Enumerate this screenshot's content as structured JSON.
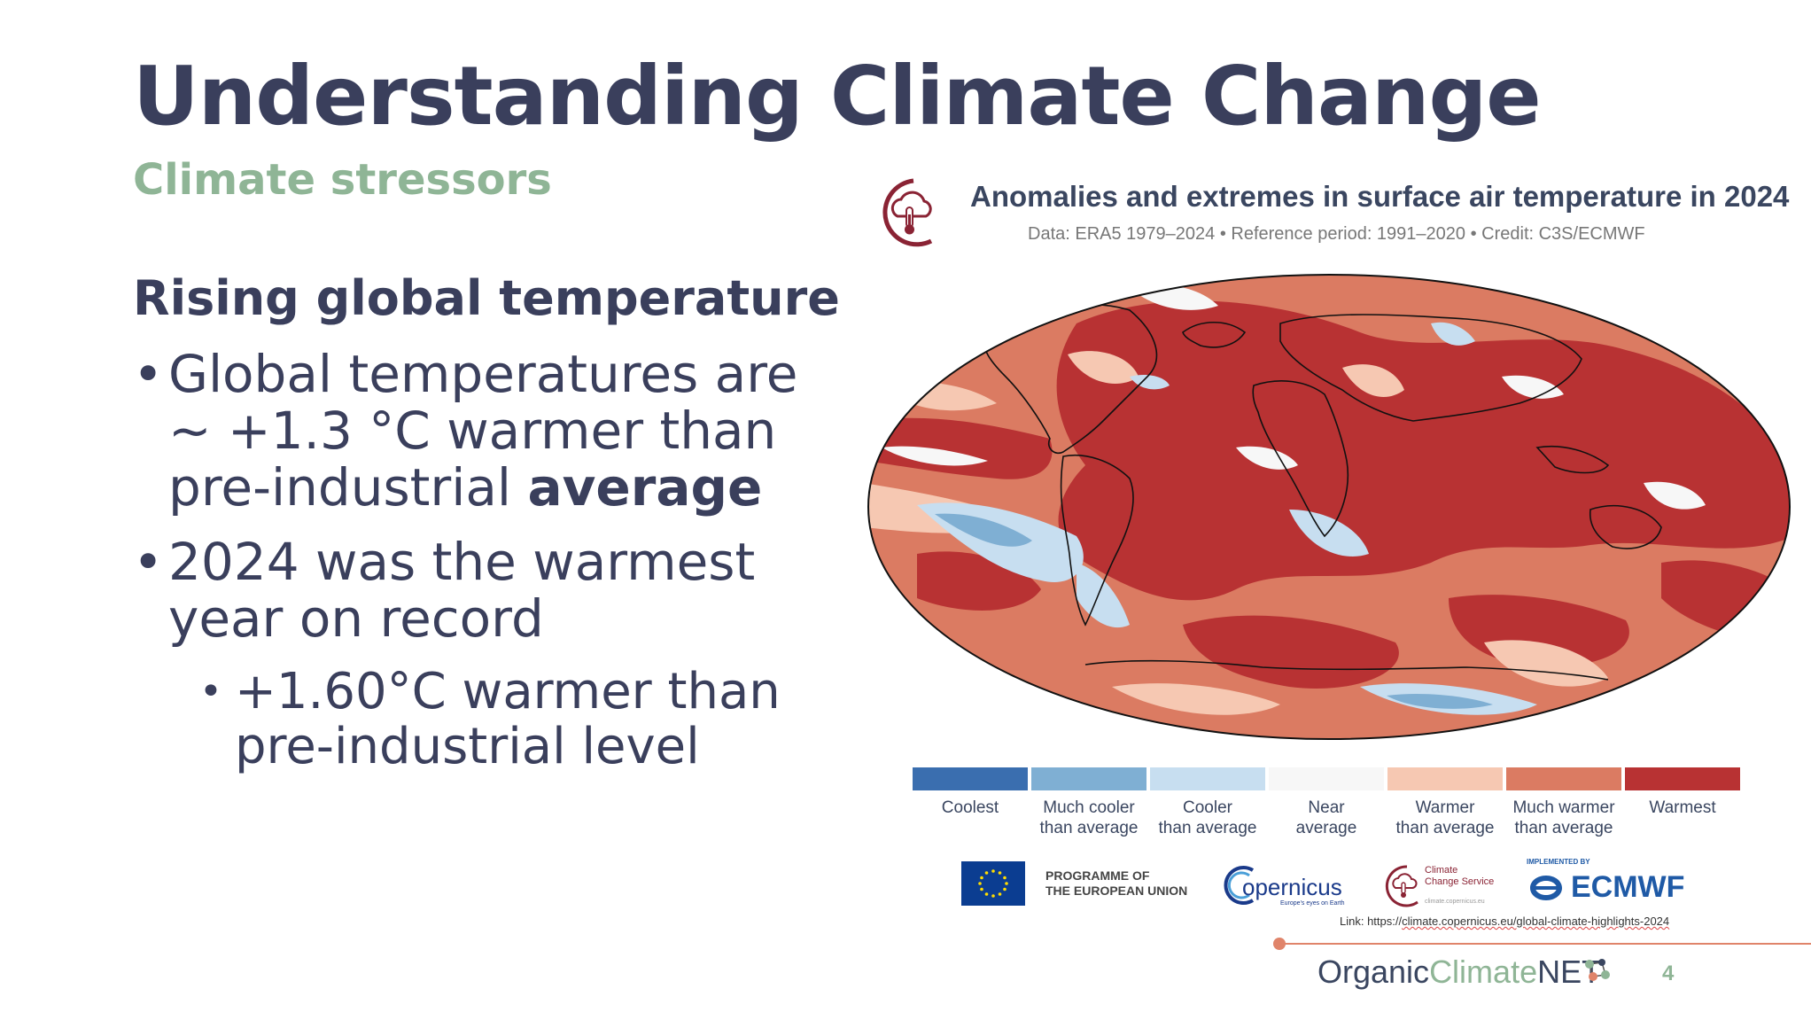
{
  "slide": {
    "title": "Understanding Climate Change",
    "subtitle": "Climate stressors",
    "heading": "Rising global temperature",
    "bullet1_text": "Global temperatures are ~ +1.3 °C warmer than pre-industrial ",
    "bullet1_bold": "average",
    "bullet2_text": "2024 was the warmest year on record",
    "sub_bullet": "+1.60°C warmer than pre-industrial level",
    "page_number": "4"
  },
  "figure": {
    "title": "Anomalies and extremes in surface air temperature in 2024",
    "subtitle": "Data: ERA5 1979–2024 • Reference period: 1991–2020 • Credit: C3S/ECMWF",
    "legend": [
      {
        "line1": "Coolest",
        "line2": "",
        "color": "#3a6eaf"
      },
      {
        "line1": "Much cooler",
        "line2": "than average",
        "color": "#7fafd3"
      },
      {
        "line1": "Cooler",
        "line2": "than average",
        "color": "#c7def0"
      },
      {
        "line1": "Near",
        "line2": "average",
        "color": "#f7f7f7"
      },
      {
        "line1": "Warmer",
        "line2": "than average",
        "color": "#f6c8b2"
      },
      {
        "line1": "Much warmer",
        "line2": "than average",
        "color": "#db7b62"
      },
      {
        "line1": "Warmest",
        "line2": "",
        "color": "#b83233"
      }
    ]
  },
  "logos": {
    "eu_line1": "PROGRAMME OF",
    "eu_line2": "THE EUROPEAN UNION",
    "copernicus": "opernicus",
    "copernicus_tag": "Europe's eyes on Earth",
    "ccs_line1": "Climate",
    "ccs_line2": "Change Service",
    "ccs_url": "climate.copernicus.eu",
    "ecmwf_small": "IMPLEMENTED BY",
    "ecmwf": "ECMWF"
  },
  "link": {
    "prefix": "Link: https://",
    "url": "climate.copernicus.eu/global-climate-highlights-2024"
  },
  "brand": {
    "part1": "Organic",
    "part2": "Climate",
    "part3": "NET"
  }
}
